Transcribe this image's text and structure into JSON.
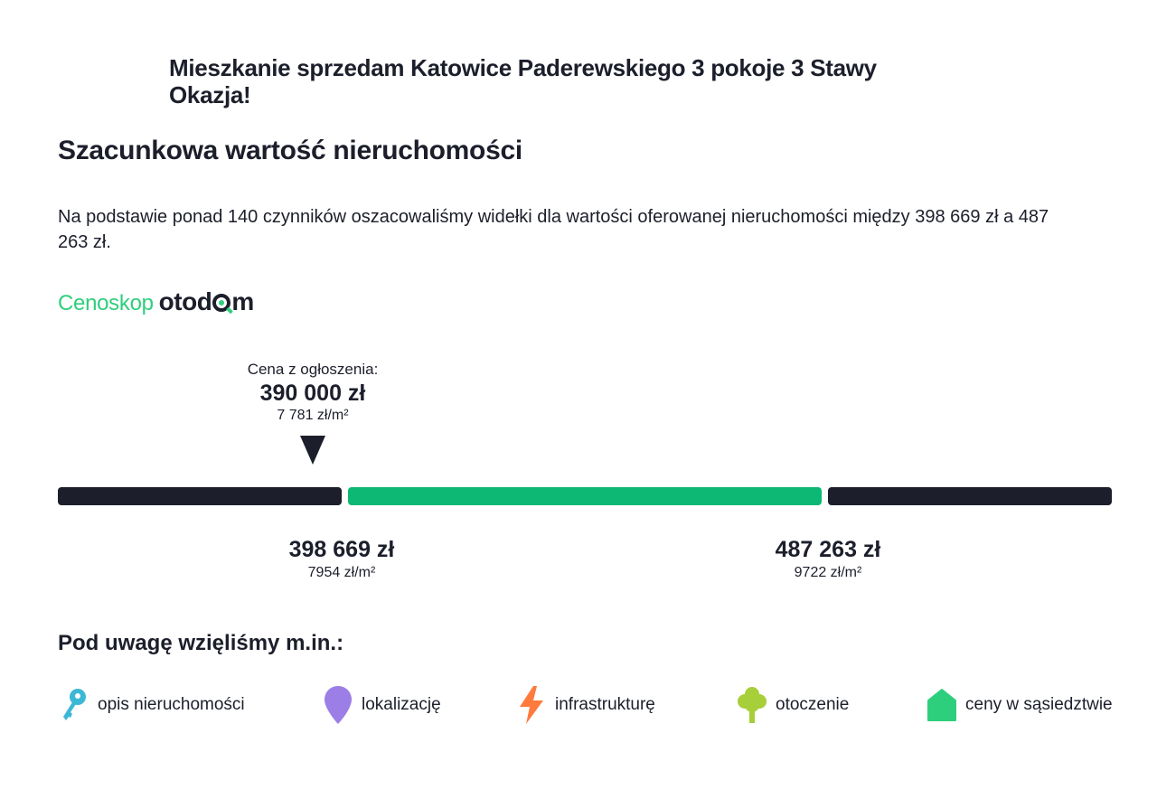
{
  "listing": {
    "title": "Mieszkanie sprzedam Katowice Paderewskiego 3 pokoje 3 Stawy Okazja!"
  },
  "valuation": {
    "heading": "Szacunkowa wartość nieruchomości",
    "description": "Na podstawie ponad 140 czynników oszacowaliśmy widełki dla wartości oferowanej nieruchomości między 398 669 zł a 487 263 zł."
  },
  "logo": {
    "cenoskop": "Cenoskop",
    "otodom_prefix": "otod",
    "otodom_suffix": "m"
  },
  "marker": {
    "label": "Cena z ogłoszenia:",
    "price": "390 000 zł",
    "price_per_sqm": "7 781 zł/m²"
  },
  "range": {
    "low": {
      "price": "398 669 zł",
      "price_per_sqm": "7954 zł/m²"
    },
    "high": {
      "price": "487 263 zł",
      "price_per_sqm": "9722 zł/m²"
    }
  },
  "colors": {
    "brand_green": "#2ecf7c",
    "range_green": "#0db774",
    "dark": "#1c1f2b"
  },
  "factors": {
    "heading": "Pod uwagę wzięliśmy m.in.:",
    "items": [
      {
        "icon": "key-icon",
        "label": "opis nieruchomości",
        "color": "#3cb8d6"
      },
      {
        "icon": "location-pin-icon",
        "label": "lokalizację",
        "color": "#9b7fe6"
      },
      {
        "icon": "lightning-icon",
        "label": "infrastrukturę",
        "color": "#ff7a3d"
      },
      {
        "icon": "tree-icon",
        "label": "otoczenie",
        "color": "#a7cf3a"
      },
      {
        "icon": "house-icon",
        "label": "ceny w sąsiedztwie",
        "color": "#2ecf7c"
      }
    ]
  }
}
